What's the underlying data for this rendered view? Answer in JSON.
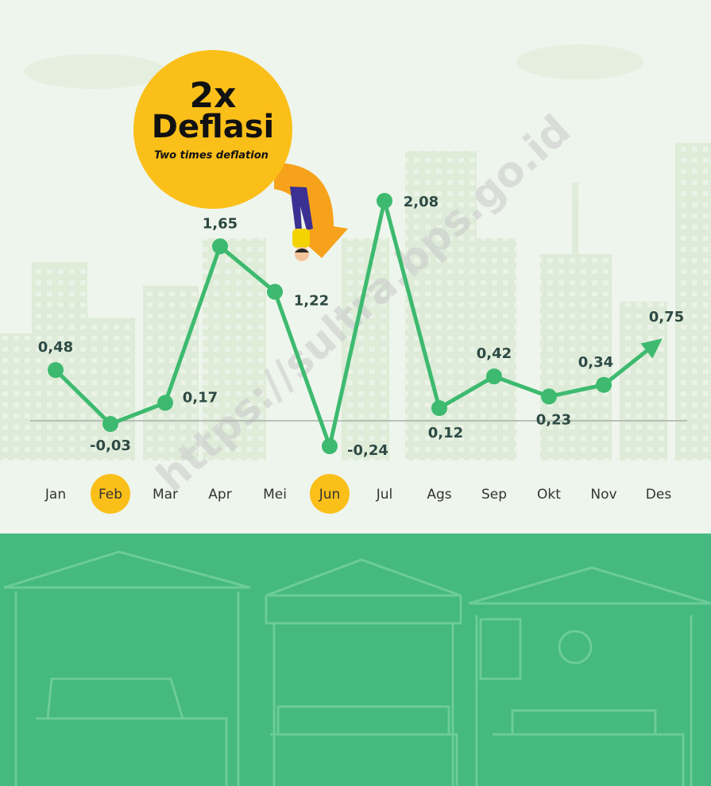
{
  "chart_data": {
    "type": "line",
    "badge": {
      "number": "2x",
      "title": "Deflasi",
      "subtitle": "Two times deflation"
    },
    "categories": [
      "Jan",
      "Feb",
      "Mar",
      "Apr",
      "Mei",
      "Jun",
      "Jul",
      "Ags",
      "Sep",
      "Okt",
      "Nov",
      "Des"
    ],
    "series": [
      {
        "color": "#3dba6f",
        "values": [
          0.48,
          -0.03,
          0.17,
          1.65,
          1.22,
          -0.24,
          2.08,
          0.12,
          0.42,
          0.23,
          0.34,
          0.75
        ],
        "value_labels": [
          "0,48",
          "-0,03",
          "0,17",
          "1,65",
          "1,22",
          "-0,24",
          "2,08",
          "0,12",
          "0,42",
          "0,23",
          "0,34",
          "0,75"
        ]
      }
    ],
    "highlight_color": "#fbbf1a",
    "watermark": "https://sultra.bps.go.id"
  }
}
